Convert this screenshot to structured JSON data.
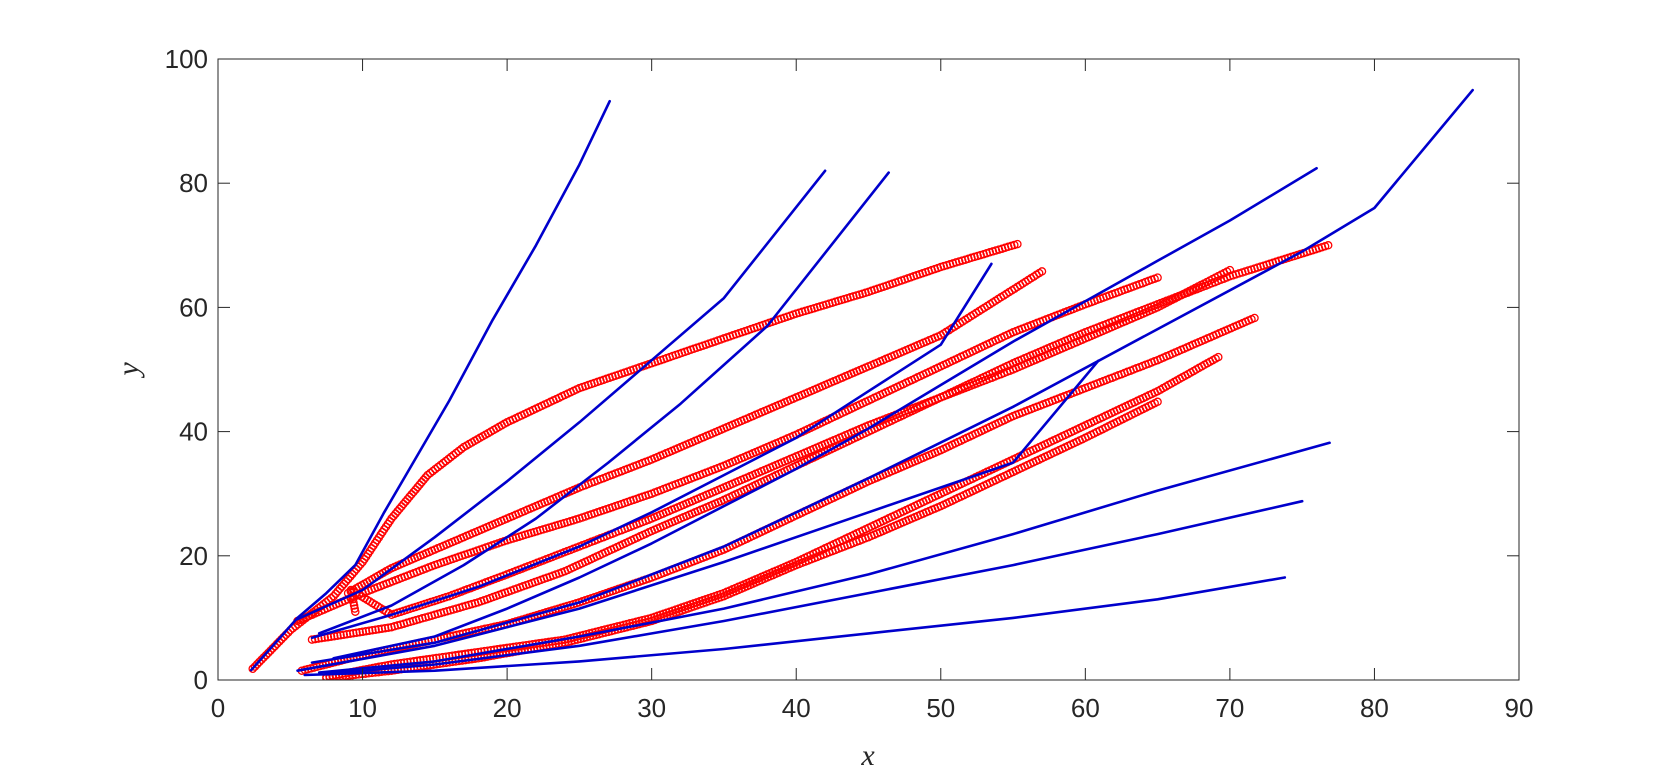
{
  "chart_data": {
    "type": "line",
    "title": "",
    "xlabel": "x",
    "ylabel": "y",
    "xlim": [
      0,
      90
    ],
    "ylim": [
      0,
      100
    ],
    "xticks": [
      0,
      10,
      20,
      30,
      40,
      50,
      60,
      70,
      80,
      90
    ],
    "yticks": [
      0,
      20,
      40,
      60,
      80,
      100
    ],
    "grid": false,
    "legend": "none",
    "colors": {
      "line": "#0000cc",
      "marker": "#ff0000",
      "axis": "#262626"
    },
    "line_series": [
      {
        "points": [
          [
            2.3,
            1.6
          ],
          [
            3.8,
            5.5
          ],
          [
            5.5,
            10
          ],
          [
            7.5,
            14
          ],
          [
            9.5,
            18.5
          ],
          [
            11.5,
            27
          ],
          [
            13,
            33
          ],
          [
            16,
            45
          ],
          [
            19,
            58
          ],
          [
            22,
            70
          ],
          [
            25,
            83
          ],
          [
            27.1,
            93.2
          ]
        ]
      },
      {
        "points": [
          [
            5.5,
            9.8
          ],
          [
            10,
            14.5
          ],
          [
            15,
            23
          ],
          [
            20,
            32
          ],
          [
            25,
            41.5
          ],
          [
            30,
            51.5
          ],
          [
            35,
            61.5
          ],
          [
            42,
            82
          ]
        ]
      },
      {
        "points": [
          [
            7,
            7.5
          ],
          [
            12,
            12
          ],
          [
            17,
            18.5
          ],
          [
            22,
            26
          ],
          [
            27,
            35
          ],
          [
            32,
            44.5
          ],
          [
            38,
            57
          ],
          [
            46.4,
            81.7
          ]
        ]
      },
      {
        "points": [
          [
            6.5,
            6.8
          ],
          [
            12,
            10.5
          ],
          [
            18,
            15
          ],
          [
            25,
            21.5
          ],
          [
            30,
            27
          ],
          [
            35,
            33
          ],
          [
            40,
            39
          ],
          [
            45,
            46.5
          ],
          [
            50,
            54
          ],
          [
            53.5,
            67
          ]
        ]
      },
      {
        "points": [
          [
            8,
            3.5
          ],
          [
            15,
            7
          ],
          [
            20,
            11.5
          ],
          [
            25,
            16.5
          ],
          [
            30,
            22
          ],
          [
            35,
            28
          ],
          [
            40,
            34
          ],
          [
            45,
            40.5
          ],
          [
            50,
            47.5
          ],
          [
            55,
            54.5
          ],
          [
            60,
            61
          ],
          [
            65,
            67.5
          ],
          [
            70,
            74
          ],
          [
            76,
            82.4
          ]
        ]
      },
      {
        "points": [
          [
            6.5,
            2.8
          ],
          [
            15,
            6
          ],
          [
            25,
            12.5
          ],
          [
            35,
            21.5
          ],
          [
            45,
            32.5
          ],
          [
            55,
            44
          ],
          [
            65,
            56.5
          ],
          [
            75,
            69
          ],
          [
            80,
            76
          ],
          [
            86.8,
            95
          ]
        ]
      },
      {
        "points": [
          [
            5.5,
            1.5
          ],
          [
            15,
            5.5
          ],
          [
            25,
            11.5
          ],
          [
            35,
            19
          ],
          [
            45,
            27
          ],
          [
            55,
            35
          ],
          [
            60.9,
            51.4
          ]
        ]
      },
      {
        "points": [
          [
            7,
            1.2
          ],
          [
            15,
            3
          ],
          [
            25,
            7
          ],
          [
            35,
            11.5
          ],
          [
            45,
            17
          ],
          [
            55,
            23.5
          ],
          [
            65,
            30.5
          ],
          [
            76.9,
            38.2
          ]
        ]
      },
      {
        "points": [
          [
            7.5,
            1
          ],
          [
            15,
            2.5
          ],
          [
            25,
            5.5
          ],
          [
            35,
            9.5
          ],
          [
            45,
            14
          ],
          [
            55,
            18.5
          ],
          [
            65,
            23.5
          ],
          [
            75,
            28.8
          ]
        ]
      },
      {
        "points": [
          [
            6,
            0.8
          ],
          [
            15,
            1.5
          ],
          [
            25,
            3
          ],
          [
            35,
            5
          ],
          [
            45,
            7.5
          ],
          [
            55,
            10
          ],
          [
            65,
            13
          ],
          [
            73.8,
            16.5
          ]
        ]
      }
    ],
    "marker_series": [
      {
        "points": [
          [
            2.4,
            1.8
          ],
          [
            5,
            8
          ],
          [
            8,
            13.5
          ],
          [
            10,
            19
          ],
          [
            12,
            26
          ],
          [
            14.5,
            33
          ],
          [
            17,
            37.5
          ],
          [
            20,
            41.5
          ],
          [
            25,
            47
          ],
          [
            30,
            51
          ],
          [
            35,
            55
          ],
          [
            40,
            59
          ],
          [
            45,
            62.5
          ],
          [
            50,
            66.5
          ],
          [
            55.3,
            70.2
          ]
        ]
      },
      {
        "points": [
          [
            9,
            14
          ],
          [
            12,
            18
          ],
          [
            16,
            22
          ],
          [
            20,
            26
          ],
          [
            25,
            31
          ],
          [
            30,
            35.5
          ],
          [
            35,
            40.5
          ],
          [
            40,
            45.5
          ],
          [
            45,
            50.5
          ],
          [
            50,
            55.5
          ],
          [
            57,
            65.8
          ]
        ]
      },
      {
        "points": [
          [
            5.5,
            9.5
          ],
          [
            10,
            14
          ],
          [
            15,
            18.5
          ],
          [
            20,
            22.5
          ],
          [
            25,
            26
          ],
          [
            30,
            30
          ],
          [
            35,
            34.5
          ],
          [
            40,
            39.5
          ],
          [
            45,
            45
          ],
          [
            50,
            50.5
          ],
          [
            55,
            56
          ],
          [
            60,
            60.5
          ],
          [
            65,
            64.8
          ]
        ]
      },
      {
        "points": [
          [
            9.5,
            11
          ],
          [
            9.2,
            14.5
          ],
          [
            12,
            10.5
          ],
          [
            16,
            13.5
          ],
          [
            20,
            17
          ],
          [
            25,
            21.5
          ],
          [
            30,
            26
          ],
          [
            35,
            31
          ],
          [
            40,
            36
          ],
          [
            45,
            41
          ],
          [
            50,
            45.5
          ],
          [
            55,
            50
          ],
          [
            60,
            55
          ],
          [
            65,
            60
          ],
          [
            70,
            66
          ]
        ]
      },
      {
        "points": [
          [
            6.5,
            6.5
          ],
          [
            12,
            8.5
          ],
          [
            18,
            12.5
          ],
          [
            24,
            17.5
          ],
          [
            30,
            24
          ],
          [
            35,
            29
          ],
          [
            40,
            34.5
          ],
          [
            45,
            40
          ],
          [
            50,
            45.5
          ],
          [
            55,
            51
          ],
          [
            60,
            56
          ],
          [
            65,
            60.5
          ],
          [
            70,
            65
          ],
          [
            76.8,
            70
          ]
        ]
      },
      {
        "points": [
          [
            5.8,
            1.5
          ],
          [
            10,
            4
          ],
          [
            15,
            6.5
          ],
          [
            20,
            9
          ],
          [
            25,
            12.5
          ],
          [
            30,
            16.5
          ],
          [
            35,
            21
          ],
          [
            40,
            26.5
          ],
          [
            45,
            32
          ],
          [
            50,
            37
          ],
          [
            55,
            42.5
          ],
          [
            60,
            47
          ],
          [
            65,
            51.5
          ],
          [
            71.7,
            58.3
          ]
        ]
      },
      {
        "points": [
          [
            7.5,
            0.5
          ],
          [
            12,
            2.5
          ],
          [
            18,
            4.5
          ],
          [
            24,
            6.5
          ],
          [
            30,
            10
          ],
          [
            35,
            14
          ],
          [
            40,
            19
          ],
          [
            45,
            24.5
          ],
          [
            50,
            30
          ],
          [
            55,
            35.5
          ],
          [
            60,
            41
          ],
          [
            65,
            46.5
          ],
          [
            69.2,
            52
          ]
        ]
      },
      {
        "points": [
          [
            7.5,
            0.3
          ],
          [
            12,
            1.5
          ],
          [
            18,
            3.5
          ],
          [
            24,
            6
          ],
          [
            30,
            9.5
          ],
          [
            35,
            13.5
          ],
          [
            40,
            18.5
          ],
          [
            45,
            23
          ],
          [
            50,
            28
          ],
          [
            55,
            33.5
          ],
          [
            60,
            39
          ],
          [
            65,
            44.8
          ]
        ]
      }
    ]
  }
}
